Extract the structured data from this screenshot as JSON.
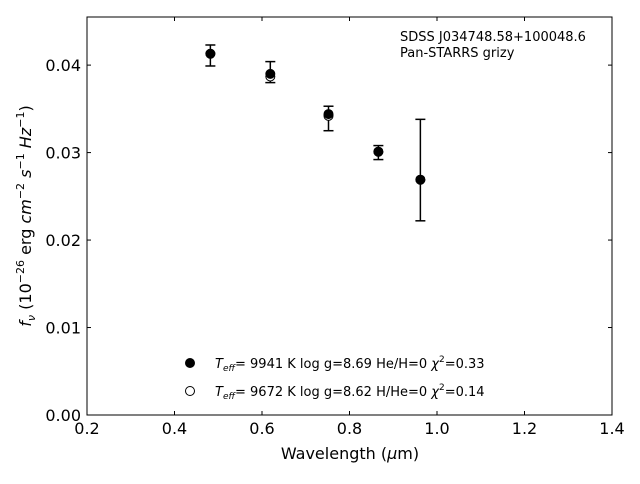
{
  "chart_data": {
    "type": "scatter",
    "xlabel": "Wavelength (μm)",
    "ylabel": "f_ν (10^-26 erg cm^-2 s^-1 Hz^-1)",
    "xlim": [
      0.2,
      1.4
    ],
    "ylim": [
      0.0,
      0.0455
    ],
    "x_ticks": [
      0.2,
      0.4,
      0.6,
      0.8,
      1.0,
      1.2,
      1.4
    ],
    "x_tick_labels": [
      "0.2",
      "0.4",
      "0.6",
      "0.8",
      "1.0",
      "1.2",
      "1.4"
    ],
    "y_ticks": [
      0.0,
      0.01,
      0.02,
      0.03,
      0.04
    ],
    "y_tick_labels": [
      "0.00",
      "0.01",
      "0.02",
      "0.03",
      "0.04"
    ],
    "grid": false,
    "legend_position": "bottom-center",
    "annotation": {
      "line1": "SDSS J034748.58+100048.6",
      "line2": "Pan-STARRS grizy",
      "position": "top-right"
    },
    "observed": {
      "x": [
        0.482,
        0.619,
        0.752,
        0.866,
        0.962
      ],
      "y": [
        0.0411,
        0.0392,
        0.0339,
        0.03,
        0.028
      ],
      "yerr": [
        0.0012,
        0.0012,
        0.0014,
        0.0008,
        0.0058
      ]
    },
    "series": [
      {
        "name": "Teff= 9941 K log g=8.69 He/H=0 χ2=0.33",
        "marker": "filled-circle",
        "legend_parts": {
          "pre": "T",
          "sub": "eff",
          "mid": "=  9941 K  log g=8.69  He/H=0  ",
          "chi": "χ",
          "sup": "2",
          "post": "=0.33"
        },
        "x": [
          0.482,
          0.619,
          0.752,
          0.866,
          0.962
        ],
        "y": [
          0.0413,
          0.039,
          0.0344,
          0.0301,
          0.0269
        ]
      },
      {
        "name": "Teff= 9672 K log g=8.62 H/He=0 χ2=0.14",
        "marker": "open-circle",
        "legend_parts": {
          "pre": "T",
          "sub": "eff",
          "mid": "=  9672 K  log g=8.62  H/He=0  ",
          "chi": "χ",
          "sup": "2",
          "post": "=0.14"
        },
        "x": [
          0.482,
          0.619,
          0.752,
          0.866,
          0.962
        ],
        "y": [
          0.0413,
          0.0387,
          0.0342,
          0.0301,
          0.0269
        ]
      }
    ]
  }
}
